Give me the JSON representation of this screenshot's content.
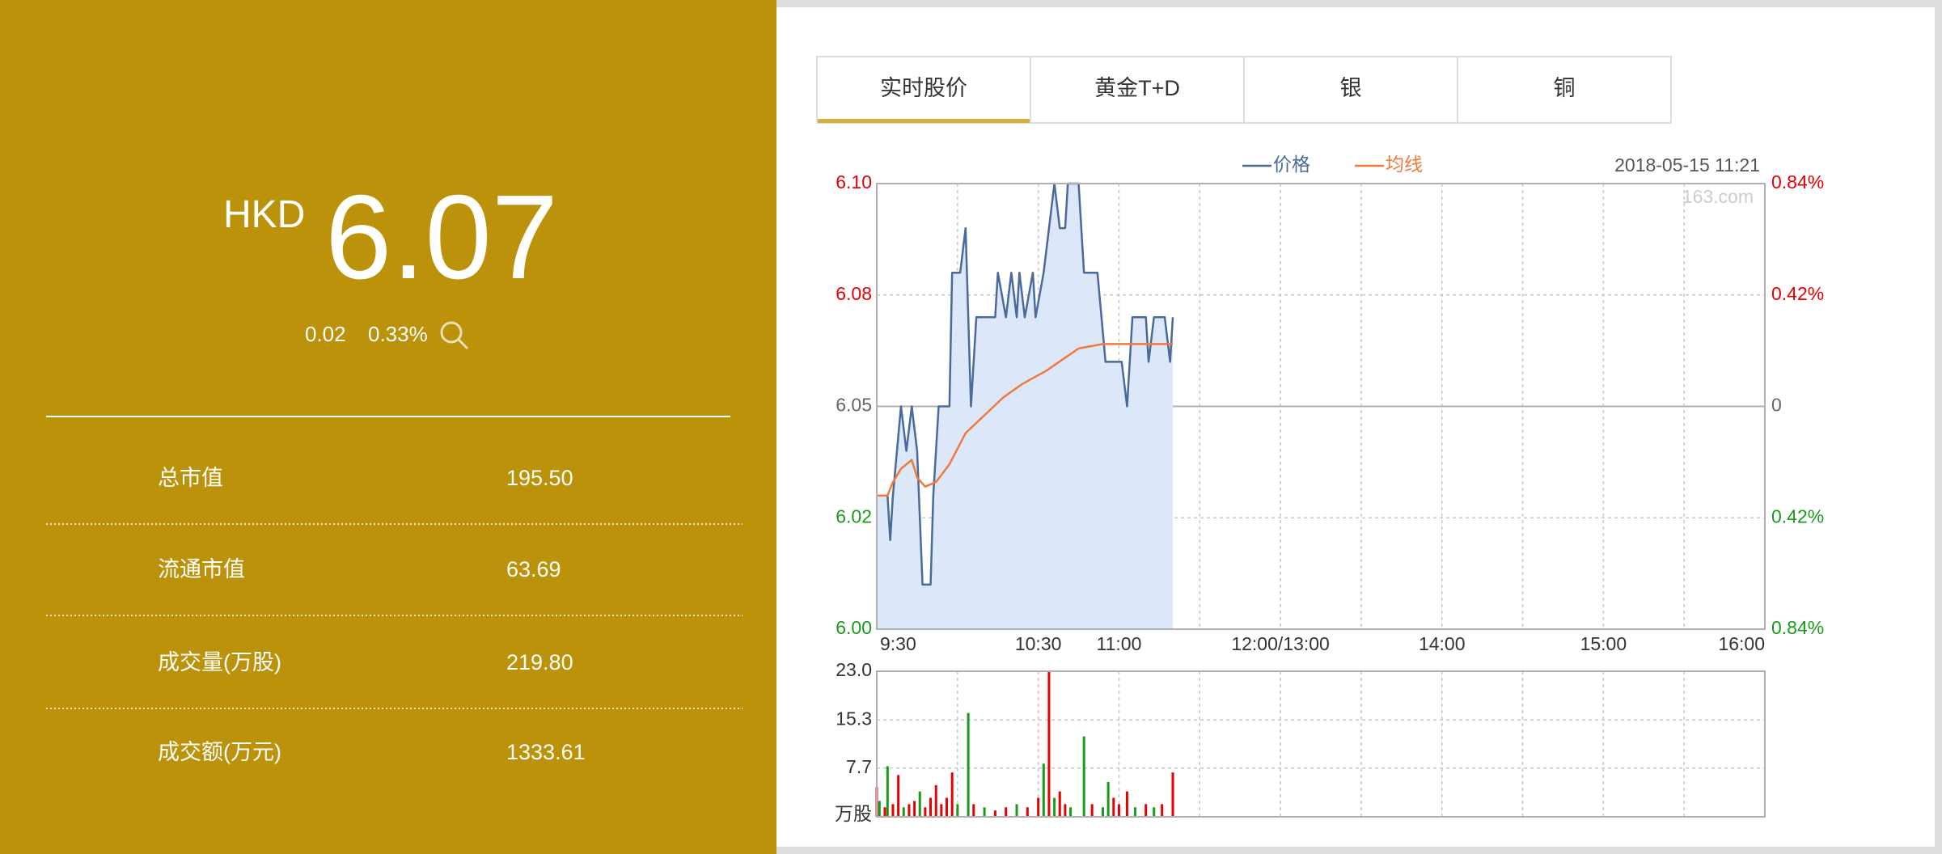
{
  "quote": {
    "currency": "HKD",
    "price": "6.07",
    "change": "0.02",
    "change_pct": "0.33%"
  },
  "stats": [
    {
      "label": "总市值",
      "value": "195.50"
    },
    {
      "label": "流通市值",
      "value": "63.69"
    },
    {
      "label": "成交量(万股)",
      "value": "219.80"
    },
    {
      "label": "成交额(万元)",
      "value": "1333.61"
    }
  ],
  "tabs": [
    "实时股价",
    "黄金T+D",
    "银",
    "铜"
  ],
  "chart_data": [
    {
      "type": "line",
      "date": "2018-05-15 11:21",
      "watermark": "163.com",
      "xlim": [
        0,
        330
      ],
      "xticks": [
        {
          "value": 0,
          "label": "9:30"
        },
        {
          "value": 60,
          "label": "10:30"
        },
        {
          "value": 90,
          "label": "11:00"
        },
        {
          "value": 150,
          "label": "12:00/13:00"
        },
        {
          "value": 210,
          "label": "14:00"
        },
        {
          "value": 270,
          "label": "15:00"
        },
        {
          "value": 330,
          "label": "16:00"
        }
      ],
      "x_gridlines": [
        30,
        60,
        90,
        120,
        150,
        180,
        210,
        240,
        270,
        300
      ],
      "ylim": [
        6.0,
        6.1
      ],
      "yticks": [
        {
          "value": 6.0,
          "label": "6.00"
        },
        {
          "value": 6.025,
          "label": "6.02"
        },
        {
          "value": 6.05,
          "label": "6.05"
        },
        {
          "value": 6.075,
          "label": "6.08"
        },
        {
          "value": 6.1,
          "label": "6.10"
        }
      ],
      "y2lim": [
        -0.84,
        0.84
      ],
      "y2ticks": [
        {
          "value": -0.84,
          "label": "0.84%"
        },
        {
          "value": -0.42,
          "label": "0.42%"
        },
        0,
        {
          "value": 0.42,
          "label": "0.42%"
        },
        {
          "value": 0.84,
          "label": "0.84%"
        }
      ],
      "up_color": "#e60000",
      "down_color": "#1a9a1a",
      "flat_color": "#666666",
      "series": [
        {
          "name": "价格",
          "color": "#4a6a9c",
          "fill": "#dce8fa",
          "x": [
            0,
            4,
            5,
            6,
            9,
            11,
            13,
            15,
            17,
            20,
            21,
            23,
            27,
            28,
            31,
            33,
            35,
            37,
            44,
            45,
            48,
            50,
            52,
            53,
            55,
            58,
            59,
            62,
            64,
            66,
            68,
            70,
            71,
            75,
            77,
            82,
            85,
            91,
            93,
            95,
            100,
            101,
            103,
            107,
            109,
            110
          ],
          "values": [
            6.03,
            6.03,
            6.02,
            6.03,
            6.05,
            6.04,
            6.05,
            6.04,
            6.01,
            6.01,
            6.03,
            6.05,
            6.05,
            6.08,
            6.08,
            6.09,
            6.05,
            6.07,
            6.07,
            6.08,
            6.07,
            6.08,
            6.07,
            6.08,
            6.07,
            6.08,
            6.07,
            6.08,
            6.09,
            6.1,
            6.09,
            6.09,
            6.1,
            6.1,
            6.08,
            6.08,
            6.06,
            6.06,
            6.05,
            6.07,
            6.07,
            6.06,
            6.07,
            6.07,
            6.06,
            6.07
          ]
        },
        {
          "name": "均线",
          "color": "#f07a3c",
          "x": [
            0,
            4,
            6,
            9,
            13,
            15,
            18,
            22,
            27,
            33,
            40,
            47,
            54,
            63,
            75,
            84,
            93,
            102,
            110
          ],
          "values": [
            6.03,
            6.03,
            6.033,
            6.036,
            6.038,
            6.034,
            6.032,
            6.033,
            6.037,
            6.044,
            6.048,
            6.052,
            6.055,
            6.058,
            6.063,
            6.064,
            6.064,
            6.064,
            6.064
          ]
        }
      ]
    },
    {
      "type": "bar",
      "ylabel": "万股",
      "xlim": [
        0,
        330
      ],
      "x_gridlines": [
        30,
        60,
        90,
        120,
        150,
        180,
        210,
        240,
        270,
        300
      ],
      "ylim": [
        0,
        23
      ],
      "yticks": [
        {
          "value": 23,
          "label": "23.0"
        },
        15.3,
        7.7
      ],
      "x": [
        0,
        1,
        3,
        4,
        6,
        8,
        10,
        12,
        14,
        16,
        18,
        20,
        22,
        24,
        26,
        28,
        30,
        34,
        36,
        40,
        44,
        48,
        52,
        56,
        60,
        62,
        64,
        66,
        68,
        70,
        72,
        77,
        80,
        84,
        86,
        88,
        90,
        93,
        96,
        100,
        103,
        106,
        110
      ],
      "values": [
        4.7,
        2.5,
        1.5,
        8,
        2,
        6.6,
        1.5,
        2,
        2.5,
        4,
        1.5,
        3,
        5,
        2,
        3,
        7,
        2,
        16.4,
        2,
        1.5,
        1,
        1.5,
        2,
        1.5,
        3,
        8.4,
        23,
        3,
        4,
        2,
        1.5,
        12.7,
        2,
        1.5,
        5.5,
        3,
        2,
        4,
        1.5,
        2,
        1.5,
        2,
        7
      ],
      "colors": [
        "#e60000",
        "#1a9a1a",
        "#e60000",
        "#1a9a1a",
        "#e60000",
        "#e60000",
        "#1a9a1a",
        "#e60000",
        "#e60000",
        "#1a9a1a",
        "#e60000",
        "#e60000",
        "#e60000",
        "#e60000",
        "#e60000",
        "#e60000",
        "#1a9a1a",
        "#1a9a1a",
        "#e60000",
        "#1a9a1a",
        "#e60000",
        "#e60000",
        "#1a9a1a",
        "#e60000",
        "#e60000",
        "#1a9a1a",
        "#e60000",
        "#1a9a1a",
        "#e60000",
        "#e60000",
        "#1a9a1a",
        "#1a9a1a",
        "#e60000",
        "#1a9a1a",
        "#1a9a1a",
        "#e60000",
        "#e60000",
        "#e60000",
        "#1a9a1a",
        "#e60000",
        "#1a9a1a",
        "#e60000",
        "#e60000"
      ]
    }
  ]
}
